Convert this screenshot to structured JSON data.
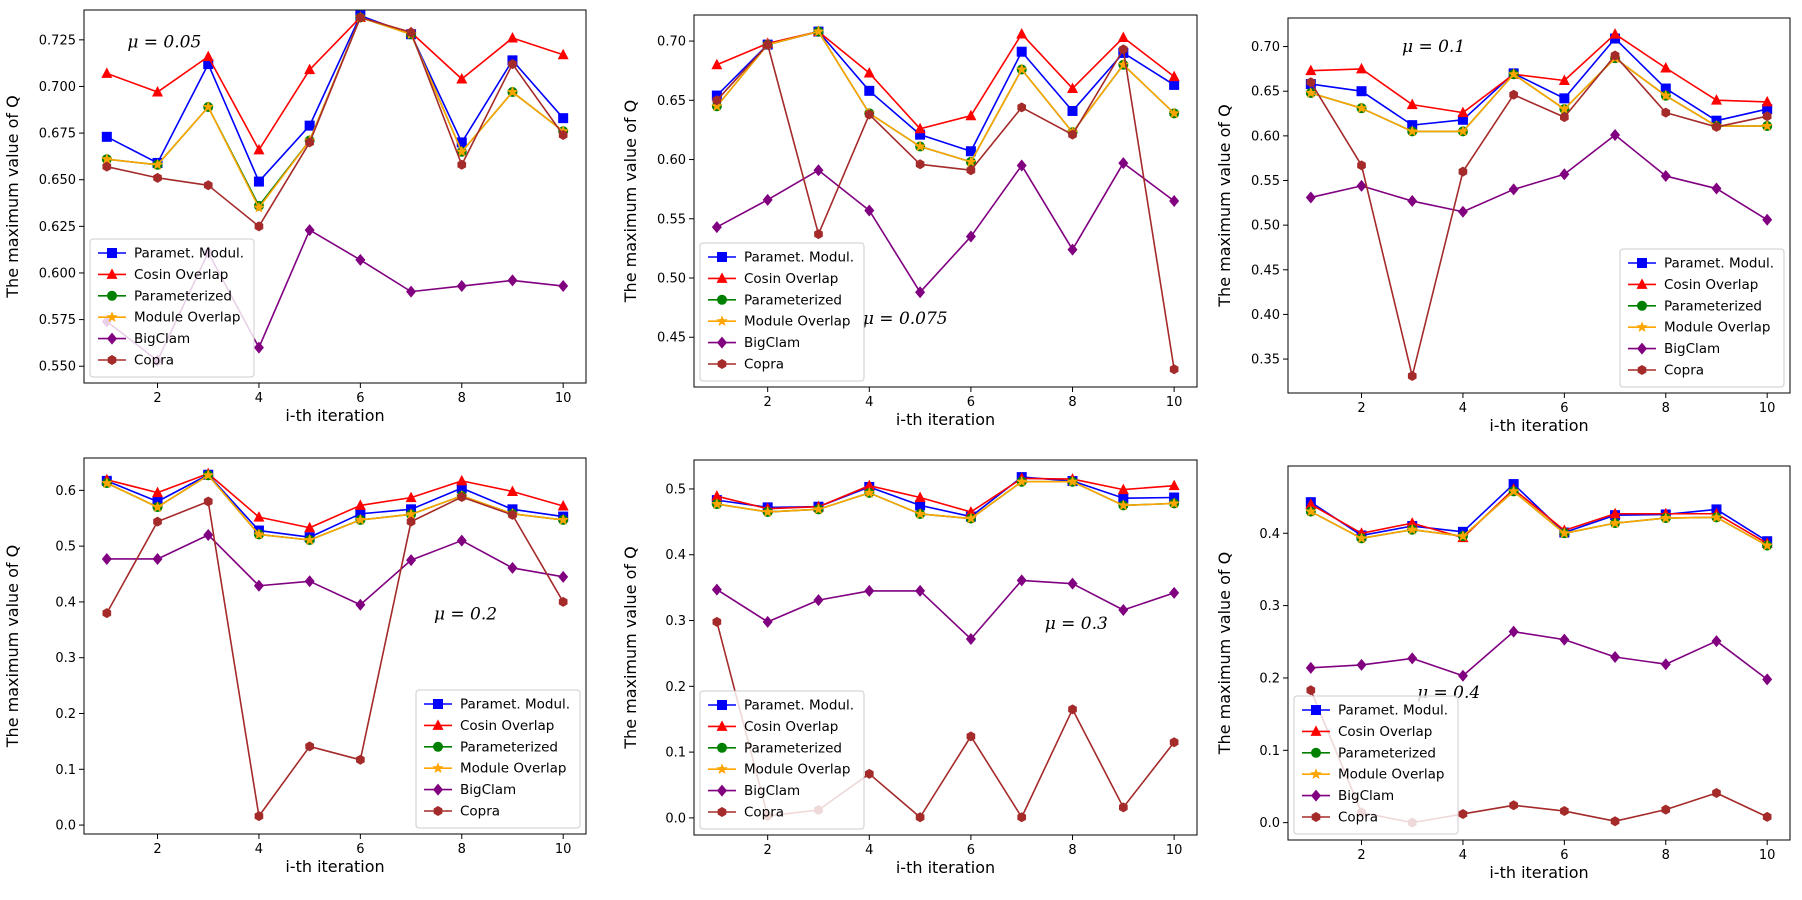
{
  "figure": {
    "series_names": [
      "Paramet. Modul.",
      "Cosin Overlap",
      "Parameterized",
      "Module Overlap",
      "BigClam",
      "Copra"
    ],
    "series_colors": [
      "#0000ff",
      "#ff0000",
      "#008000",
      "#ffa500",
      "#800080",
      "#a52a2a"
    ],
    "series_markers": [
      "square",
      "triangle",
      "circle",
      "star",
      "diamond",
      "hexagon"
    ]
  },
  "chart_data": [
    {
      "type": "line",
      "mu_label": "μ = 0.05",
      "annotation_pos": "top-left",
      "xlabel": "i-th iteration",
      "ylabel": "The maximum value of Q",
      "x": [
        1,
        2,
        3,
        4,
        5,
        6,
        7,
        8,
        9,
        10
      ],
      "xticks": [
        "2",
        "4",
        "6",
        "8",
        "10"
      ],
      "xlim": [
        0.55,
        10.45
      ],
      "ylim": [
        0.541,
        0.741
      ],
      "yticks": [
        "0.550",
        "0.575",
        "0.600",
        "0.625",
        "0.650",
        "0.675",
        "0.700",
        "0.725"
      ],
      "legend_loc": "lower-left",
      "series": [
        {
          "name": "Paramet. Modul.",
          "values": [
            0.673,
            0.659,
            0.712,
            0.649,
            0.679,
            0.738,
            0.728,
            0.67,
            0.714,
            0.683
          ]
        },
        {
          "name": "Cosin Overlap",
          "values": [
            0.707,
            0.697,
            0.716,
            0.666,
            0.709,
            0.737,
            0.729,
            0.704,
            0.726,
            0.717
          ]
        },
        {
          "name": "Parameterized",
          "values": [
            0.661,
            0.658,
            0.689,
            0.636,
            0.671,
            0.737,
            0.728,
            0.665,
            0.697,
            0.676
          ]
        },
        {
          "name": "Module Overlap",
          "values": [
            0.661,
            0.658,
            0.689,
            0.635,
            0.671,
            0.737,
            0.728,
            0.665,
            0.697,
            0.676
          ]
        },
        {
          "name": "BigClam",
          "values": [
            0.574,
            0.553,
            0.611,
            0.56,
            0.623,
            0.607,
            0.59,
            0.593,
            0.596,
            0.593
          ]
        },
        {
          "name": "Copra",
          "values": [
            0.657,
            0.651,
            0.647,
            0.625,
            0.67,
            0.737,
            0.729,
            0.658,
            0.712,
            0.674
          ]
        }
      ]
    },
    {
      "type": "line",
      "mu_label": "μ = 0.075",
      "annotation_pos": "bottom-center",
      "xlabel": "i-th iteration",
      "ylabel": "The maximum value of Q",
      "x": [
        1,
        2,
        3,
        4,
        5,
        6,
        7,
        8,
        9,
        10
      ],
      "xticks": [
        "2",
        "4",
        "6",
        "8",
        "10"
      ],
      "xlim": [
        0.55,
        10.45
      ],
      "ylim": [
        0.408,
        0.722
      ],
      "yticks": [
        "0.45",
        "0.50",
        "0.55",
        "0.60",
        "0.65",
        "0.70"
      ],
      "legend_loc": "lower-left",
      "series": [
        {
          "name": "Paramet. Modul.",
          "values": [
            0.654,
            0.697,
            0.708,
            0.658,
            0.621,
            0.607,
            0.691,
            0.641,
            0.69,
            0.663
          ]
        },
        {
          "name": "Cosin Overlap",
          "values": [
            0.68,
            0.698,
            0.708,
            0.673,
            0.626,
            0.637,
            0.706,
            0.66,
            0.703,
            0.67
          ]
        },
        {
          "name": "Parameterized",
          "values": [
            0.645,
            0.697,
            0.708,
            0.639,
            0.611,
            0.598,
            0.676,
            0.623,
            0.68,
            0.639
          ]
        },
        {
          "name": "Module Overlap",
          "values": [
            0.645,
            0.697,
            0.708,
            0.639,
            0.611,
            0.598,
            0.676,
            0.623,
            0.68,
            0.639
          ]
        },
        {
          "name": "BigClam",
          "values": [
            0.543,
            0.566,
            0.591,
            0.557,
            0.488,
            0.535,
            0.595,
            0.524,
            0.597,
            0.565
          ]
        },
        {
          "name": "Copra",
          "values": [
            0.65,
            0.697,
            0.537,
            0.638,
            0.596,
            0.591,
            0.644,
            0.621,
            0.693,
            0.423
          ]
        }
      ]
    },
    {
      "type": "line",
      "mu_label": "μ = 0.1",
      "annotation_pos": "top-left",
      "xlabel": "i-th iteration",
      "ylabel": "The maximum value of Q",
      "x": [
        1,
        2,
        3,
        4,
        5,
        6,
        7,
        8,
        9,
        10
      ],
      "xticks": [
        "2",
        "4",
        "6",
        "8",
        "10"
      ],
      "xlim": [
        0.55,
        10.45
      ],
      "ylim": [
        0.312,
        0.732
      ],
      "yticks": [
        "0.35",
        "0.40",
        "0.45",
        "0.50",
        "0.55",
        "0.60",
        "0.65",
        "0.70"
      ],
      "legend_loc": "lower-right",
      "series": [
        {
          "name": "Paramet. Modul.",
          "values": [
            0.658,
            0.65,
            0.612,
            0.618,
            0.67,
            0.642,
            0.709,
            0.653,
            0.617,
            0.63
          ]
        },
        {
          "name": "Cosin Overlap",
          "values": [
            0.673,
            0.675,
            0.635,
            0.626,
            0.669,
            0.662,
            0.714,
            0.676,
            0.64,
            0.638
          ]
        },
        {
          "name": "Parameterized",
          "values": [
            0.648,
            0.631,
            0.605,
            0.605,
            0.669,
            0.63,
            0.687,
            0.645,
            0.611,
            0.611
          ]
        },
        {
          "name": "Module Overlap",
          "values": [
            0.648,
            0.631,
            0.605,
            0.605,
            0.669,
            0.63,
            0.687,
            0.645,
            0.611,
            0.611
          ]
        },
        {
          "name": "BigClam",
          "values": [
            0.531,
            0.544,
            0.527,
            0.515,
            0.54,
            0.557,
            0.601,
            0.555,
            0.541,
            0.506
          ]
        },
        {
          "name": "Copra",
          "values": [
            0.66,
            0.567,
            0.331,
            0.56,
            0.646,
            0.621,
            0.69,
            0.626,
            0.61,
            0.622
          ]
        }
      ]
    },
    {
      "type": "line",
      "mu_label": "μ = 0.2",
      "annotation_pos": "center-right",
      "xlabel": "i-th iteration",
      "ylabel": "The maximum value of Q",
      "x": [
        1,
        2,
        3,
        4,
        5,
        6,
        7,
        8,
        9,
        10
      ],
      "xticks": [
        "2",
        "4",
        "6",
        "8",
        "10"
      ],
      "xlim": [
        0.55,
        10.45
      ],
      "ylim": [
        -0.016,
        0.658
      ],
      "yticks": [
        "0.0",
        "0.1",
        "0.2",
        "0.3",
        "0.4",
        "0.5",
        "0.6"
      ],
      "legend_loc": "lower-right",
      "series": [
        {
          "name": "Paramet. Modul.",
          "values": [
            0.617,
            0.58,
            0.628,
            0.528,
            0.516,
            0.558,
            0.566,
            0.604,
            0.566,
            0.553
          ]
        },
        {
          "name": "Cosin Overlap",
          "values": [
            0.619,
            0.596,
            0.63,
            0.552,
            0.533,
            0.573,
            0.587,
            0.617,
            0.598,
            0.572
          ]
        },
        {
          "name": "Parameterized",
          "values": [
            0.613,
            0.57,
            0.627,
            0.521,
            0.511,
            0.547,
            0.557,
            0.59,
            0.558,
            0.547
          ]
        },
        {
          "name": "Module Overlap",
          "values": [
            0.613,
            0.57,
            0.627,
            0.521,
            0.511,
            0.547,
            0.557,
            0.59,
            0.558,
            0.547
          ]
        },
        {
          "name": "BigClam",
          "values": [
            0.477,
            0.477,
            0.52,
            0.429,
            0.437,
            0.395,
            0.475,
            0.51,
            0.461,
            0.445
          ]
        },
        {
          "name": "Copra",
          "values": [
            0.38,
            0.544,
            0.58,
            0.016,
            0.141,
            0.117,
            0.544,
            0.588,
            0.556,
            0.4
          ]
        }
      ]
    },
    {
      "type": "line",
      "mu_label": "μ = 0.3",
      "annotation_pos": "center-right",
      "xlabel": "i-th iteration",
      "ylabel": "The maximum value of Q",
      "x": [
        1,
        2,
        3,
        4,
        5,
        6,
        7,
        8,
        9,
        10
      ],
      "xticks": [
        "2",
        "4",
        "6",
        "8",
        "10"
      ],
      "xlim": [
        0.55,
        10.45
      ],
      "ylim": [
        -0.026,
        0.544
      ],
      "yticks": [
        "0.0",
        "0.1",
        "0.2",
        "0.3",
        "0.4",
        "0.5"
      ],
      "legend_loc": "lower-left",
      "series": [
        {
          "name": "Paramet. Modul.",
          "values": [
            0.483,
            0.472,
            0.473,
            0.503,
            0.475,
            0.458,
            0.518,
            0.512,
            0.486,
            0.487
          ]
        },
        {
          "name": "Cosin Overlap",
          "values": [
            0.489,
            0.47,
            0.473,
            0.505,
            0.487,
            0.465,
            0.516,
            0.515,
            0.499,
            0.505
          ]
        },
        {
          "name": "Parameterized",
          "values": [
            0.477,
            0.465,
            0.469,
            0.494,
            0.462,
            0.455,
            0.511,
            0.511,
            0.475,
            0.478
          ]
        },
        {
          "name": "Module Overlap",
          "values": [
            0.477,
            0.465,
            0.469,
            0.494,
            0.462,
            0.455,
            0.511,
            0.511,
            0.475,
            0.478
          ]
        },
        {
          "name": "BigClam",
          "values": [
            0.347,
            0.298,
            0.331,
            0.345,
            0.345,
            0.272,
            0.361,
            0.356,
            0.316,
            0.342
          ]
        },
        {
          "name": "Copra",
          "values": [
            0.298,
            0.003,
            0.012,
            0.067,
            0.001,
            0.124,
            0.001,
            0.165,
            0.016,
            0.115
          ]
        }
      ]
    },
    {
      "type": "line",
      "mu_label": "μ = 0.4",
      "annotation_pos": "center-left",
      "xlabel": "i-th iteration",
      "ylabel": "The maximum value of Q",
      "x": [
        1,
        2,
        3,
        4,
        5,
        6,
        7,
        8,
        9,
        10
      ],
      "xticks": [
        "2",
        "4",
        "6",
        "8",
        "10"
      ],
      "xlim": [
        0.55,
        10.45
      ],
      "ylim": [
        -0.024,
        0.493
      ],
      "yticks": [
        "0.0",
        "0.1",
        "0.2",
        "0.3",
        "0.4"
      ],
      "legend_loc": "lower-left",
      "series": [
        {
          "name": "Paramet. Modul.",
          "values": [
            0.443,
            0.397,
            0.41,
            0.402,
            0.468,
            0.401,
            0.425,
            0.426,
            0.433,
            0.389
          ]
        },
        {
          "name": "Cosin Overlap",
          "values": [
            0.44,
            0.4,
            0.414,
            0.394,
            0.461,
            0.404,
            0.427,
            0.427,
            0.427,
            0.386
          ]
        },
        {
          "name": "Parameterized",
          "values": [
            0.43,
            0.393,
            0.405,
            0.396,
            0.458,
            0.4,
            0.414,
            0.421,
            0.422,
            0.383
          ]
        },
        {
          "name": "Module Overlap",
          "values": [
            0.43,
            0.393,
            0.405,
            0.396,
            0.458,
            0.4,
            0.414,
            0.421,
            0.422,
            0.383
          ]
        },
        {
          "name": "BigClam",
          "values": [
            0.214,
            0.218,
            0.227,
            0.203,
            0.264,
            0.253,
            0.229,
            0.219,
            0.251,
            0.198
          ]
        },
        {
          "name": "Copra",
          "values": [
            0.183,
            0.014,
            0.0,
            0.012,
            0.024,
            0.016,
            0.002,
            0.018,
            0.041,
            0.008
          ]
        }
      ]
    }
  ]
}
